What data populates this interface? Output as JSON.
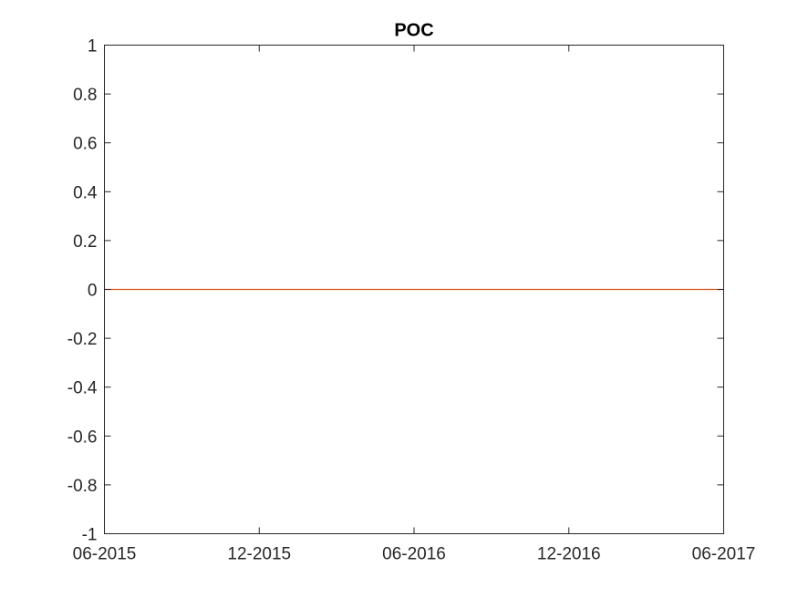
{
  "chart_data": {
    "type": "line",
    "title": "POC",
    "xlabel": "",
    "ylabel": "",
    "x_ticks": [
      "06-2015",
      "12-2015",
      "06-2016",
      "12-2016",
      "06-2017"
    ],
    "xlim": [
      "06-2015",
      "06-2017"
    ],
    "ylim": [
      -1,
      1
    ],
    "y_ticks": [
      1,
      0.8,
      0.6,
      0.4,
      0.2,
      0,
      -0.2,
      -0.4,
      -0.6,
      -0.8,
      -1
    ],
    "y_tick_labels": [
      "1",
      "0.8",
      "0.6",
      "0.4",
      "0.2",
      "0",
      "-0.2",
      "-0.4",
      "-0.6",
      "-0.8",
      "-1"
    ],
    "grid": false,
    "series": [
      {
        "color": "#D95319",
        "x": [
          "06-2015",
          "06-2017"
        ],
        "values": [
          0,
          0
        ]
      }
    ]
  }
}
